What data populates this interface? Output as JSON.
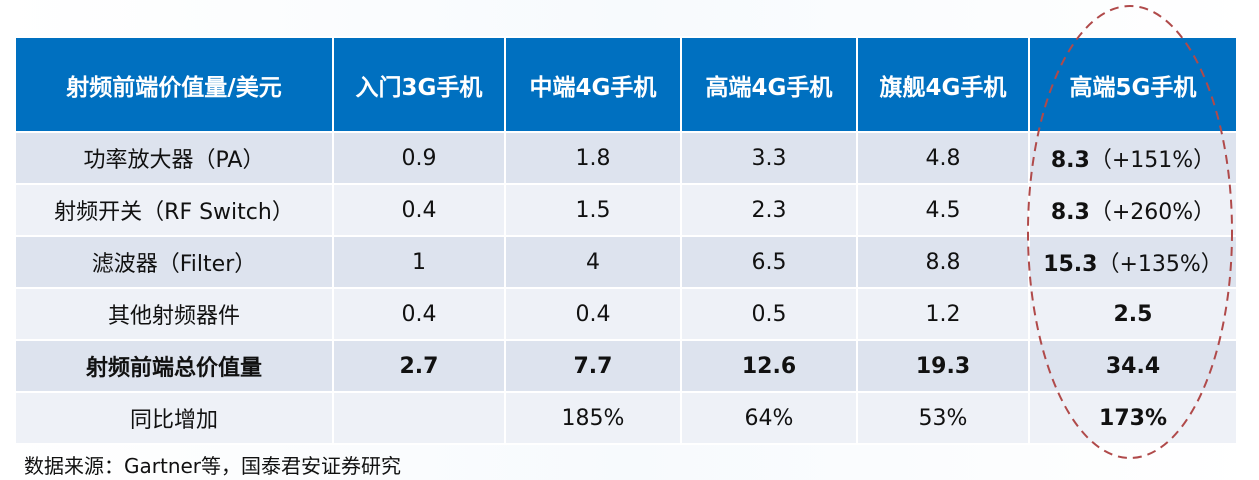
{
  "table": {
    "headers": [
      "射频前端价值量/美元",
      "入门3G手机",
      "中端4G手机",
      "高端4G手机",
      "旗舰4G手机",
      "高端5G手机"
    ],
    "rows": [
      {
        "label": "功率放大器（PA）",
        "cells": [
          "0.9",
          "1.8",
          "3.3",
          "4.8"
        ],
        "g5": {
          "value": "8.3",
          "suffix": "（+151%）"
        }
      },
      {
        "label": "射频开关（RF Switch）",
        "cells": [
          "0.4",
          "1.5",
          "2.3",
          "4.5"
        ],
        "g5": {
          "value": "8.3",
          "suffix": "（+260%）"
        }
      },
      {
        "label": "滤波器（Filter）",
        "cells": [
          "1",
          "4",
          "6.5",
          "8.8"
        ],
        "g5": {
          "value": "15.3",
          "suffix": "（+135%）"
        }
      },
      {
        "label": "其他射频器件",
        "cells": [
          "0.4",
          "0.4",
          "0.5",
          "1.2"
        ],
        "g5": {
          "value": "2.5",
          "suffix": ""
        }
      },
      {
        "label": "射频前端总价值量",
        "cells": [
          "2.7",
          "7.7",
          "12.6",
          "19.3"
        ],
        "g5": {
          "value": "34.4",
          "suffix": ""
        }
      },
      {
        "label": "同比增加",
        "cells": [
          "",
          "185%",
          "64%",
          "53%"
        ],
        "g5": {
          "value": "173%",
          "suffix": ""
        }
      }
    ]
  },
  "source": "数据来源：Gartner等，国泰君安证券研究",
  "colors": {
    "header_bg": "#0070c0",
    "row_bg_dark": "#dde3ee",
    "row_bg_light": "#eef1f7",
    "highlight_ellipse": "#b04a4a"
  }
}
